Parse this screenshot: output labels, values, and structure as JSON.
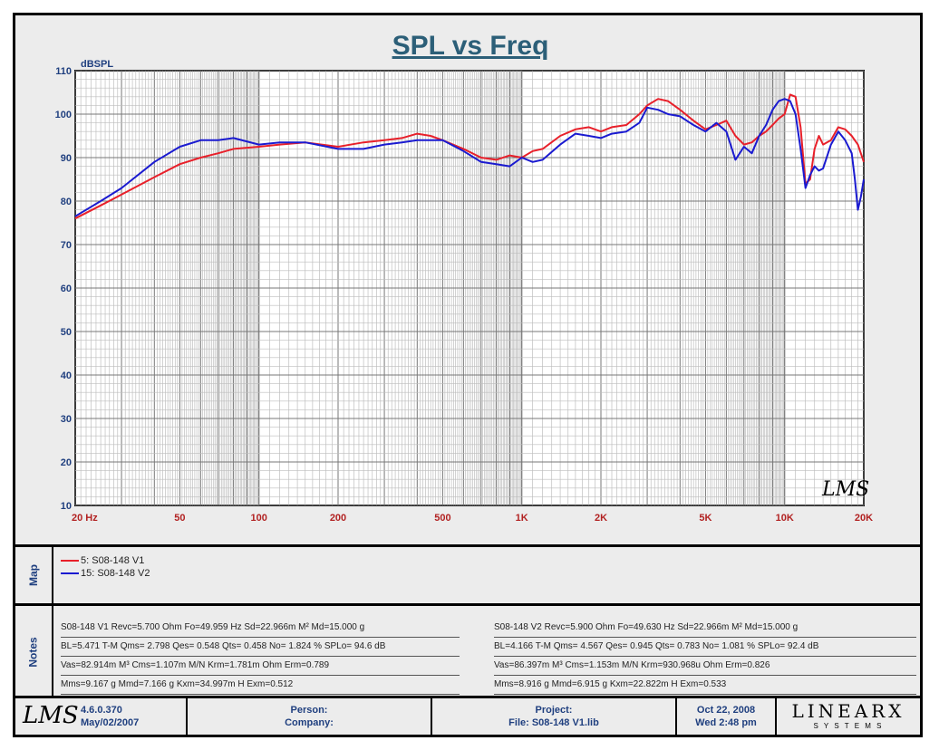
{
  "chart_data": {
    "type": "line",
    "title": "SPL vs Freq",
    "ylabel": "dBSPL",
    "xscale": "log",
    "xlim": [
      20,
      20000
    ],
    "ylim": [
      10,
      110
    ],
    "y_ticks": [
      110,
      100,
      90,
      80,
      70,
      60,
      50,
      40,
      30,
      20,
      10
    ],
    "x_ticks": [
      {
        "v": 20,
        "label": "20  Hz"
      },
      {
        "v": 50,
        "label": "50"
      },
      {
        "v": 100,
        "label": "100"
      },
      {
        "v": 200,
        "label": "200"
      },
      {
        "v": 500,
        "label": "500"
      },
      {
        "v": 1000,
        "label": "1K"
      },
      {
        "v": 2000,
        "label": "2K"
      },
      {
        "v": 5000,
        "label": "5K"
      },
      {
        "v": 10000,
        "label": "10K"
      },
      {
        "v": 20000,
        "label": "20K"
      }
    ],
    "grid": true,
    "series": [
      {
        "name": "5: S08-148 V1",
        "color": "#e8202a",
        "points": [
          [
            20,
            76
          ],
          [
            25,
            79
          ],
          [
            30,
            81.5
          ],
          [
            40,
            85.5
          ],
          [
            50,
            88.5
          ],
          [
            60,
            90
          ],
          [
            70,
            91
          ],
          [
            80,
            92
          ],
          [
            100,
            92.5
          ],
          [
            120,
            93
          ],
          [
            150,
            93.5
          ],
          [
            200,
            92.5
          ],
          [
            250,
            93.5
          ],
          [
            300,
            94
          ],
          [
            350,
            94.5
          ],
          [
            400,
            95.5
          ],
          [
            450,
            95
          ],
          [
            500,
            94
          ],
          [
            600,
            92
          ],
          [
            700,
            90
          ],
          [
            800,
            89.5
          ],
          [
            900,
            90.5
          ],
          [
            1000,
            90
          ],
          [
            1100,
            91.5
          ],
          [
            1200,
            92
          ],
          [
            1400,
            95
          ],
          [
            1600,
            96.5
          ],
          [
            1800,
            97
          ],
          [
            2000,
            96
          ],
          [
            2200,
            97
          ],
          [
            2500,
            97.5
          ],
          [
            2800,
            100
          ],
          [
            3000,
            102
          ],
          [
            3300,
            103.5
          ],
          [
            3600,
            103
          ],
          [
            4000,
            101
          ],
          [
            4500,
            98.5
          ],
          [
            5000,
            96.5
          ],
          [
            5500,
            97.5
          ],
          [
            6000,
            98.5
          ],
          [
            6500,
            95
          ],
          [
            7000,
            93
          ],
          [
            7500,
            93.5
          ],
          [
            8000,
            95
          ],
          [
            8500,
            96
          ],
          [
            9000,
            97.5
          ],
          [
            9500,
            99
          ],
          [
            10000,
            100
          ],
          [
            10500,
            104.5
          ],
          [
            11000,
            104
          ],
          [
            11500,
            97
          ],
          [
            12000,
            84
          ],
          [
            12500,
            85
          ],
          [
            13000,
            92
          ],
          [
            13500,
            95
          ],
          [
            14000,
            93
          ],
          [
            15000,
            94
          ],
          [
            16000,
            97
          ],
          [
            17000,
            96.5
          ],
          [
            18000,
            95
          ],
          [
            19000,
            93
          ],
          [
            20000,
            89
          ]
        ]
      },
      {
        "name": "15: S08-148 V2",
        "color": "#1a1ad0",
        "points": [
          [
            20,
            76.5
          ],
          [
            25,
            80
          ],
          [
            30,
            83
          ],
          [
            40,
            89
          ],
          [
            50,
            92.5
          ],
          [
            60,
            94
          ],
          [
            70,
            94
          ],
          [
            80,
            94.5
          ],
          [
            100,
            93
          ],
          [
            120,
            93.5
          ],
          [
            150,
            93.5
          ],
          [
            200,
            92
          ],
          [
            250,
            92
          ],
          [
            300,
            93
          ],
          [
            350,
            93.5
          ],
          [
            400,
            94
          ],
          [
            450,
            94
          ],
          [
            500,
            94
          ],
          [
            600,
            91.5
          ],
          [
            700,
            89
          ],
          [
            800,
            88.5
          ],
          [
            900,
            88
          ],
          [
            1000,
            90
          ],
          [
            1100,
            89
          ],
          [
            1200,
            89.5
          ],
          [
            1400,
            93
          ],
          [
            1600,
            95.5
          ],
          [
            1800,
            95
          ],
          [
            2000,
            94.5
          ],
          [
            2200,
            95.5
          ],
          [
            2500,
            96
          ],
          [
            2800,
            98
          ],
          [
            3000,
            101.5
          ],
          [
            3300,
            101
          ],
          [
            3600,
            100
          ],
          [
            4000,
            99.5
          ],
          [
            4500,
            97.5
          ],
          [
            5000,
            96
          ],
          [
            5500,
            98
          ],
          [
            6000,
            96
          ],
          [
            6500,
            89.5
          ],
          [
            7000,
            92.5
          ],
          [
            7500,
            91
          ],
          [
            8000,
            95
          ],
          [
            8500,
            97.5
          ],
          [
            9000,
            101
          ],
          [
            9500,
            103
          ],
          [
            10000,
            103.5
          ],
          [
            10500,
            103
          ],
          [
            11000,
            100
          ],
          [
            11500,
            92
          ],
          [
            12000,
            83
          ],
          [
            12500,
            86
          ],
          [
            13000,
            88
          ],
          [
            13500,
            87
          ],
          [
            14000,
            87.5
          ],
          [
            15000,
            93
          ],
          [
            16000,
            96
          ],
          [
            17000,
            94
          ],
          [
            18000,
            91
          ],
          [
            18500,
            85
          ],
          [
            19000,
            78
          ],
          [
            19500,
            81
          ],
          [
            20000,
            85
          ]
        ]
      }
    ]
  },
  "map": {
    "label": "Map"
  },
  "notes": {
    "label": "Notes",
    "left": [
      "S08-148 V1 Revc=5.700 Ohm  Fo=49.959 Hz  Sd=22.966m M² Md=15.000 g",
      "BL=5.471 T-M  Qms= 2.798  Qes= 0.548  Qts= 0.458  No= 1.824 %  SPLo= 94.6 dB",
      "Vas=82.914m M³  Cms=1.107m M/N  Krm=1.781m Ohm  Erm=0.789",
      "Mms=9.167 g  Mmd=7.166 g  Kxm=34.997m H  Exm=0.512"
    ],
    "right": [
      "S08-148 V2 Revc=5.900 Ohm  Fo=49.630 Hz  Sd=22.966m M² Md=15.000 g",
      "BL=4.166 T-M  Qms= 4.567  Qes= 0.945  Qts= 0.783  No= 1.081 %  SPLo= 92.4 dB",
      "Vas=86.397m M³  Cms=1.153m M/N  Krm=930.968u Ohm  Erm=0.826",
      "Mms=8.916 g  Mmd=6.915 g  Kxm=22.822m H  Exm=0.533"
    ]
  },
  "footer": {
    "logo": "LMS",
    "version": "4.6.0.370",
    "version_date": "May/02/2007",
    "person_label": "Person:",
    "company_label": "Company:",
    "project_label": "Project:",
    "file_label": "File: S08-148 V1.lib",
    "date": "Oct 22, 2008",
    "time": "Wed  2:48 pm",
    "brand": "LINEARX",
    "brand_sub": "S Y S T E M S"
  },
  "watermark": "LMS"
}
